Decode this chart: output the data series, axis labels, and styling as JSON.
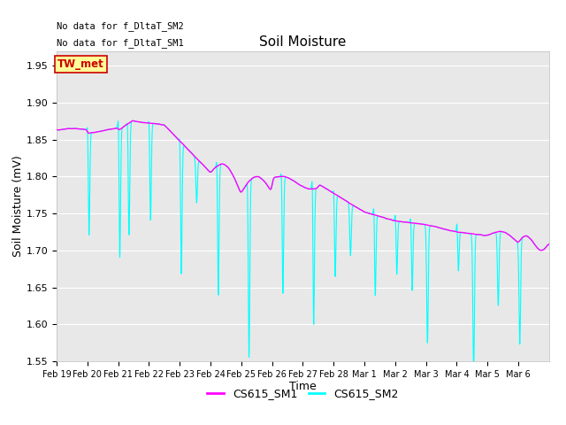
{
  "title": "Soil Moisture",
  "xlabel": "Time",
  "ylabel": "Soil Moisture (mV)",
  "ylim": [
    1.55,
    1.97
  ],
  "yticks": [
    1.55,
    1.6,
    1.65,
    1.7,
    1.75,
    1.8,
    1.85,
    1.9,
    1.95
  ],
  "bg_color": "#e8e8e8",
  "fig_color": "#ffffff",
  "line1_color": "#ff00ff",
  "line2_color": "#00ffff",
  "line1_label": "CS615_SM1",
  "line2_label": "CS615_SM2",
  "annotation_text1": "No data for f_DltaT_SM1",
  "annotation_text2": "No data for f_DltaT_SM2",
  "box_label": "TW_met",
  "box_color": "#ffff99",
  "box_edge_color": "#cc0000",
  "box_text_color": "#cc0000",
  "xtick_labels": [
    "Feb 19",
    "Feb 20",
    "Feb 21",
    "Feb 22",
    "Feb 23",
    "Feb 24",
    "Feb 25",
    "Feb 26",
    "Feb 27",
    "Feb 28",
    "Mar 1",
    "Mar 2",
    "Mar 3",
    "Mar 4",
    "Mar 5",
    "Mar 6"
  ],
  "n_points": 3000,
  "spike_times": [
    1.05,
    2.05,
    2.35,
    3.05,
    4.05,
    4.55,
    5.25,
    6.25,
    7.35,
    8.35,
    9.05,
    9.55,
    10.35,
    11.05,
    11.55,
    12.05,
    13.05,
    13.55,
    14.35,
    15.05
  ],
  "spike_depths": [
    0.15,
    0.19,
    0.16,
    0.14,
    0.19,
    0.06,
    0.19,
    0.25,
    0.17,
    0.2,
    0.12,
    0.07,
    0.12,
    0.08,
    0.1,
    0.16,
    0.06,
    0.19,
    0.1,
    0.14
  ],
  "spike_up_times": [
    1.02,
    2.02,
    2.32,
    3.02,
    4.02,
    5.22,
    6.22,
    7.32,
    8.32,
    9.02,
    10.32,
    11.02,
    11.52,
    13.02
  ],
  "spike_up_depths": [
    0.04,
    0.06,
    0.03,
    0.03,
    0.04,
    0.05,
    0.04,
    0.04,
    0.06,
    0.03,
    0.04,
    0.03,
    0.03,
    0.03
  ]
}
